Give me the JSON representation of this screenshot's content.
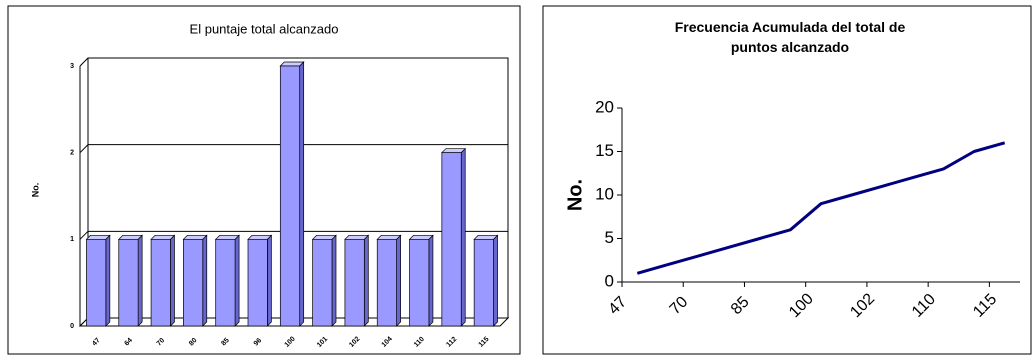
{
  "chart_data": [
    {
      "type": "bar",
      "title": "El puntaje total alcanzado",
      "y_label": "No.",
      "categories": [
        "47",
        "64",
        "70",
        "80",
        "85",
        "96",
        "100",
        "101",
        "102",
        "104",
        "110",
        "112",
        "115"
      ],
      "values": [
        1,
        1,
        1,
        1,
        1,
        1,
        3,
        1,
        1,
        1,
        1,
        2,
        1
      ],
      "color": "#9999ff",
      "ylim": [
        0,
        3
      ],
      "yticks": [
        0,
        1,
        2,
        3
      ],
      "grid": true
    },
    {
      "type": "line",
      "title": "Frecuencia Acumulada del total de puntos alcanzado",
      "y_label": "No.",
      "categories": [
        "47",
        null,
        "70",
        null,
        "85",
        null,
        "100",
        null,
        "102",
        null,
        "110",
        null,
        "115"
      ],
      "values": [
        1,
        2,
        3,
        4,
        5,
        6,
        9,
        10,
        11,
        12,
        13,
        15,
        16
      ],
      "color": "#000080",
      "ylim": [
        0,
        20
      ],
      "yticks": [
        0,
        5,
        10,
        15,
        20
      ],
      "grid": false
    }
  ]
}
